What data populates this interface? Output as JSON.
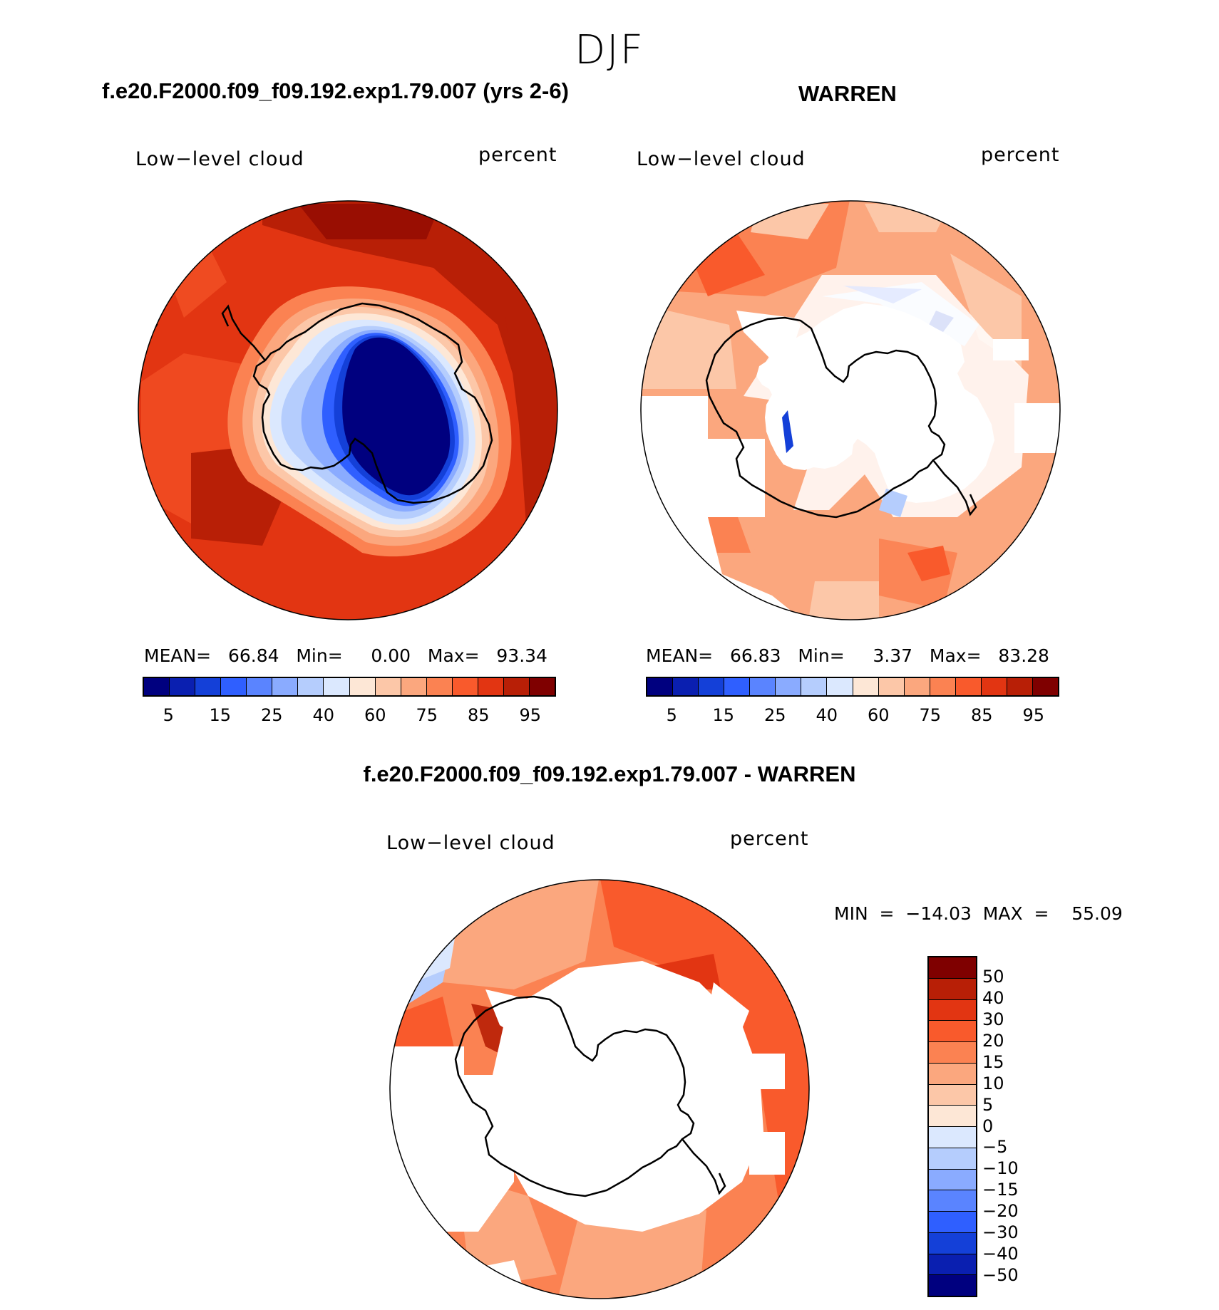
{
  "figure": {
    "season": "DJF",
    "left_panel": {
      "title": "f.e20.F2000.f09_f09.192.exp1.79.007 (yrs 2-6)",
      "variable": "Low−level cloud",
      "units": "percent",
      "stats": "MEAN=   66.84   Min=     0.00   Max=   93.34"
    },
    "right_panel": {
      "title": "WARREN",
      "variable": "Low−level cloud",
      "units": "percent",
      "stats": "MEAN=   66.83   Min=     3.37   Max=   83.28"
    },
    "diff_panel": {
      "title": "f.e20.F2000.f09_f09.192.exp1.79.007 - WARREN",
      "variable": "Low−level cloud",
      "units": "percent",
      "stats": "MIN  =  −14.03  MAX  =    55.09"
    }
  },
  "colorbar_top": {
    "colors": [
      "#00007f",
      "#0a1fb0",
      "#1440d8",
      "#2f5fff",
      "#5a84ff",
      "#8aabff",
      "#b5cdfd",
      "#dbe8fe",
      "#fde7d6",
      "#fcc7a8",
      "#fba77e",
      "#fb8252",
      "#f95a2c",
      "#e23512",
      "#b81f06",
      "#7f0000"
    ],
    "labels": [
      "5",
      "15",
      "25",
      "40",
      "60",
      "75",
      "85",
      "95"
    ]
  },
  "colorbar_diff": {
    "colors": [
      "#7f0000",
      "#b81f06",
      "#e23512",
      "#f95a2c",
      "#fb8252",
      "#fba77e",
      "#fcc7a8",
      "#fde7d6",
      "#dbe8fe",
      "#b5cdfd",
      "#8aabff",
      "#5a84ff",
      "#2f5fff",
      "#1440d8",
      "#0a1fb0",
      "#00007f"
    ],
    "labels": [
      "50",
      "40",
      "30",
      "20",
      "15",
      "10",
      "5",
      "0",
      "−5",
      "−10",
      "−15",
      "−20",
      "−30",
      "−40",
      "−50"
    ]
  }
}
